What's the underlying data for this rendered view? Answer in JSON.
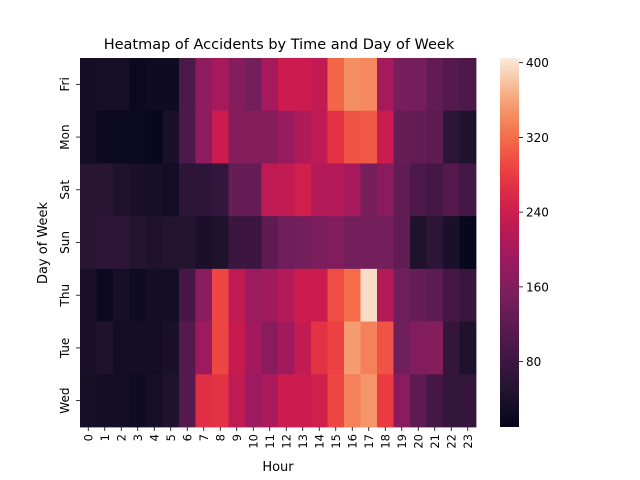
{
  "chart_data": {
    "type": "heatmap",
    "title": "Heatmap of Accidents by Time and Day of Week",
    "xlabel": "Hour",
    "ylabel": "Day of Week",
    "x": [
      "0",
      "1",
      "2",
      "3",
      "4",
      "5",
      "6",
      "7",
      "8",
      "9",
      "10",
      "11",
      "12",
      "13",
      "14",
      "15",
      "16",
      "17",
      "18",
      "19",
      "20",
      "21",
      "22",
      "23"
    ],
    "y": [
      "Fri",
      "Mon",
      "Sat",
      "Sun",
      "Thu",
      "Tue",
      "Wed"
    ],
    "values": [
      [
        30,
        35,
        35,
        20,
        25,
        25,
        100,
        175,
        200,
        165,
        145,
        200,
        240,
        240,
        230,
        315,
        345,
        340,
        200,
        150,
        150,
        125,
        110,
        100
      ],
      [
        30,
        20,
        20,
        20,
        15,
        40,
        100,
        175,
        240,
        165,
        165,
        165,
        185,
        210,
        225,
        270,
        300,
        305,
        240,
        130,
        125,
        120,
        60,
        45
      ],
      [
        55,
        55,
        45,
        40,
        35,
        30,
        60,
        60,
        70,
        130,
        130,
        225,
        230,
        245,
        215,
        215,
        200,
        150,
        170,
        125,
        100,
        90,
        110,
        90
      ],
      [
        55,
        60,
        60,
        50,
        45,
        50,
        50,
        40,
        45,
        80,
        80,
        120,
        140,
        145,
        155,
        160,
        145,
        145,
        145,
        125,
        45,
        60,
        40,
        15
      ],
      [
        40,
        20,
        35,
        25,
        30,
        30,
        95,
        170,
        290,
        225,
        190,
        195,
        215,
        240,
        240,
        295,
        320,
        395,
        215,
        140,
        130,
        120,
        90,
        75
      ],
      [
        40,
        45,
        30,
        30,
        30,
        40,
        110,
        190,
        290,
        235,
        195,
        170,
        195,
        230,
        270,
        285,
        355,
        335,
        300,
        140,
        160,
        165,
        70,
        45
      ],
      [
        35,
        30,
        30,
        25,
        35,
        45,
        110,
        265,
        270,
        225,
        190,
        205,
        240,
        240,
        245,
        290,
        335,
        350,
        280,
        170,
        120,
        90,
        70,
        70
      ]
    ],
    "colorbar": {
      "vmin": 10,
      "vmax": 405,
      "ticks": [
        80,
        160,
        240,
        320,
        400
      ]
    }
  }
}
